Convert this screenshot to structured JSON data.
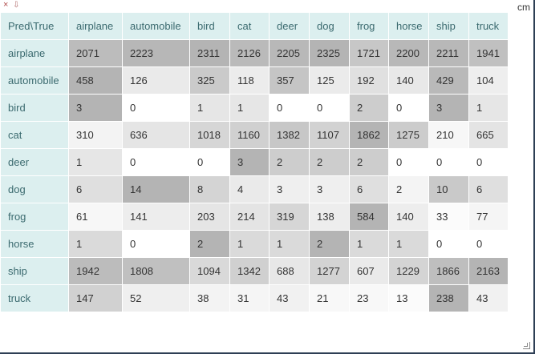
{
  "controls": {
    "close_glyph": "×",
    "popout_glyph": "⇩"
  },
  "unit_label": "cm",
  "table": {
    "corner_label": "Pred\\True",
    "columns": [
      "airplane",
      "automobile",
      "bird",
      "cat",
      "deer",
      "dog",
      "frog",
      "horse",
      "ship",
      "truck"
    ],
    "rows": [
      {
        "label": "airplane",
        "values": [
          2071,
          2223,
          2311,
          2126,
          2205,
          2325,
          1721,
          2200,
          2211,
          1941
        ]
      },
      {
        "label": "automobile",
        "values": [
          458,
          126,
          325,
          118,
          357,
          125,
          192,
          140,
          429,
          104
        ]
      },
      {
        "label": "bird",
        "values": [
          3,
          0,
          1,
          1,
          0,
          0,
          2,
          0,
          3,
          1
        ]
      },
      {
        "label": "cat",
        "values": [
          310,
          636,
          1018,
          1160,
          1382,
          1107,
          1862,
          1275,
          210,
          665
        ]
      },
      {
        "label": "deer",
        "values": [
          1,
          0,
          0,
          3,
          2,
          2,
          2,
          0,
          0,
          0
        ]
      },
      {
        "label": "dog",
        "values": [
          6,
          14,
          8,
          4,
          3,
          3,
          6,
          2,
          10,
          6
        ]
      },
      {
        "label": "frog",
        "values": [
          61,
          141,
          203,
          214,
          319,
          138,
          584,
          140,
          33,
          77
        ]
      },
      {
        "label": "horse",
        "values": [
          1,
          0,
          2,
          1,
          1,
          2,
          1,
          1,
          0,
          0
        ]
      },
      {
        "label": "ship",
        "values": [
          1942,
          1808,
          1094,
          1342,
          688,
          1277,
          607,
          1229,
          1866,
          2163
        ]
      },
      {
        "label": "truck",
        "values": [
          147,
          52,
          38,
          31,
          43,
          21,
          23,
          13,
          238,
          43
        ]
      }
    ]
  },
  "colors": {
    "header_bg": "#dcefef",
    "header_text": "#3b6a6f",
    "cell_text": "#333333",
    "heat_min": "#ffffff",
    "heat_max": "#b4b4b4"
  }
}
